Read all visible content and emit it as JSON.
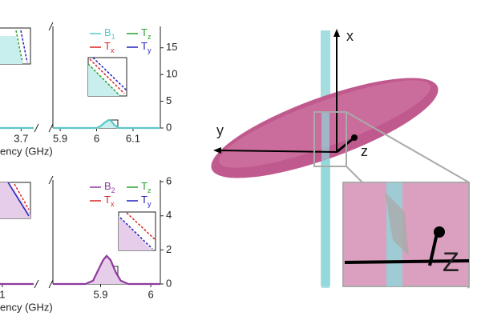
{
  "chart_data": [
    {
      "type": "line",
      "x_label": "ency (GHz)",
      "xlim": [
        3.6,
        3.75
      ],
      "xticks": [
        3.7
      ],
      "ylim": [
        0,
        19
      ],
      "x": [
        3.6,
        3.75
      ],
      "series": [
        {
          "name": "B1",
          "color": "#5cc8c8",
          "fill": "#c8eeee",
          "values": [
            0,
            0
          ]
        }
      ]
    },
    {
      "type": "line",
      "xlim": [
        5.88,
        6.175
      ],
      "xticks": [
        5.9,
        6.0,
        6.1
      ],
      "ylim": [
        0,
        19
      ],
      "yticks": [
        0,
        5,
        10,
        15
      ],
      "legend": "upper right",
      "x": [
        5.88,
        5.95,
        6.0,
        6.01,
        6.02,
        6.03,
        6.035,
        6.04,
        6.05,
        6.06,
        6.1,
        6.175
      ],
      "series": [
        {
          "name": "B1",
          "color": "#5cc8c8",
          "fill": "#c8eeee",
          "values": [
            0,
            0,
            0,
            0.3,
            0.9,
            1.4,
            1.5,
            1.3,
            0.5,
            0,
            0,
            0
          ]
        },
        {
          "name": "Tz",
          "color": "#2ca02c",
          "values": [
            0,
            0,
            0,
            0.3,
            0.9,
            1.4,
            1.5,
            1.3,
            0.5,
            0,
            0,
            0
          ]
        },
        {
          "name": "Tx",
          "color": "#d62728",
          "values": [
            0,
            0,
            0,
            0.3,
            0.9,
            1.4,
            1.5,
            1.3,
            0.5,
            0,
            0,
            0
          ]
        },
        {
          "name": "Ty",
          "color": "#2323c0",
          "values": [
            0,
            0,
            0,
            0.3,
            0.9,
            1.4,
            1.5,
            1.3,
            0.5,
            0,
            0,
            0
          ]
        }
      ]
    },
    {
      "type": "line",
      "x_label": "ency (GHz)",
      "xlim": [
        0.9,
        1.5
      ],
      "xticks": [
        1
      ],
      "ylim": [
        0,
        6.1
      ],
      "x": [
        0.9,
        1.5
      ],
      "series": [
        {
          "name": "B2",
          "color": "#8e3a9e",
          "fill": "#e6cde9",
          "values": [
            0,
            0
          ]
        }
      ]
    },
    {
      "type": "line",
      "xlim": [
        5.805,
        6.019
      ],
      "xticks": [
        5.9,
        6.0
      ],
      "ylim": [
        0,
        6.1
      ],
      "yticks": [
        0,
        2,
        4,
        6
      ],
      "legend": "upper right",
      "x": [
        5.805,
        5.87,
        5.885,
        5.895,
        5.905,
        5.912,
        5.92,
        5.93,
        5.94,
        5.955,
        6.019
      ],
      "series": [
        {
          "name": "B2",
          "color": "#8e3a9e",
          "fill": "#e6cde9",
          "values": [
            0,
            0,
            0.2,
            0.8,
            1.4,
            1.65,
            1.4,
            0.7,
            0.2,
            0,
            0
          ]
        },
        {
          "name": "Tz",
          "color": "#2ca02c",
          "values": [
            0,
            0,
            0.2,
            0.8,
            1.4,
            1.65,
            1.4,
            0.7,
            0.2,
            0,
            0
          ]
        },
        {
          "name": "Tx",
          "color": "#d62728",
          "values": [
            0,
            0,
            0.2,
            0.8,
            1.4,
            1.65,
            1.4,
            0.7,
            0.2,
            0,
            0
          ]
        },
        {
          "name": "Ty",
          "color": "#2323c0",
          "values": [
            0,
            0,
            0.2,
            0.8,
            1.4,
            1.65,
            1.4,
            0.7,
            0.2,
            0,
            0
          ]
        }
      ]
    }
  ],
  "illustration": {
    "labels": [
      "x",
      "y",
      "z",
      "Z"
    ]
  }
}
